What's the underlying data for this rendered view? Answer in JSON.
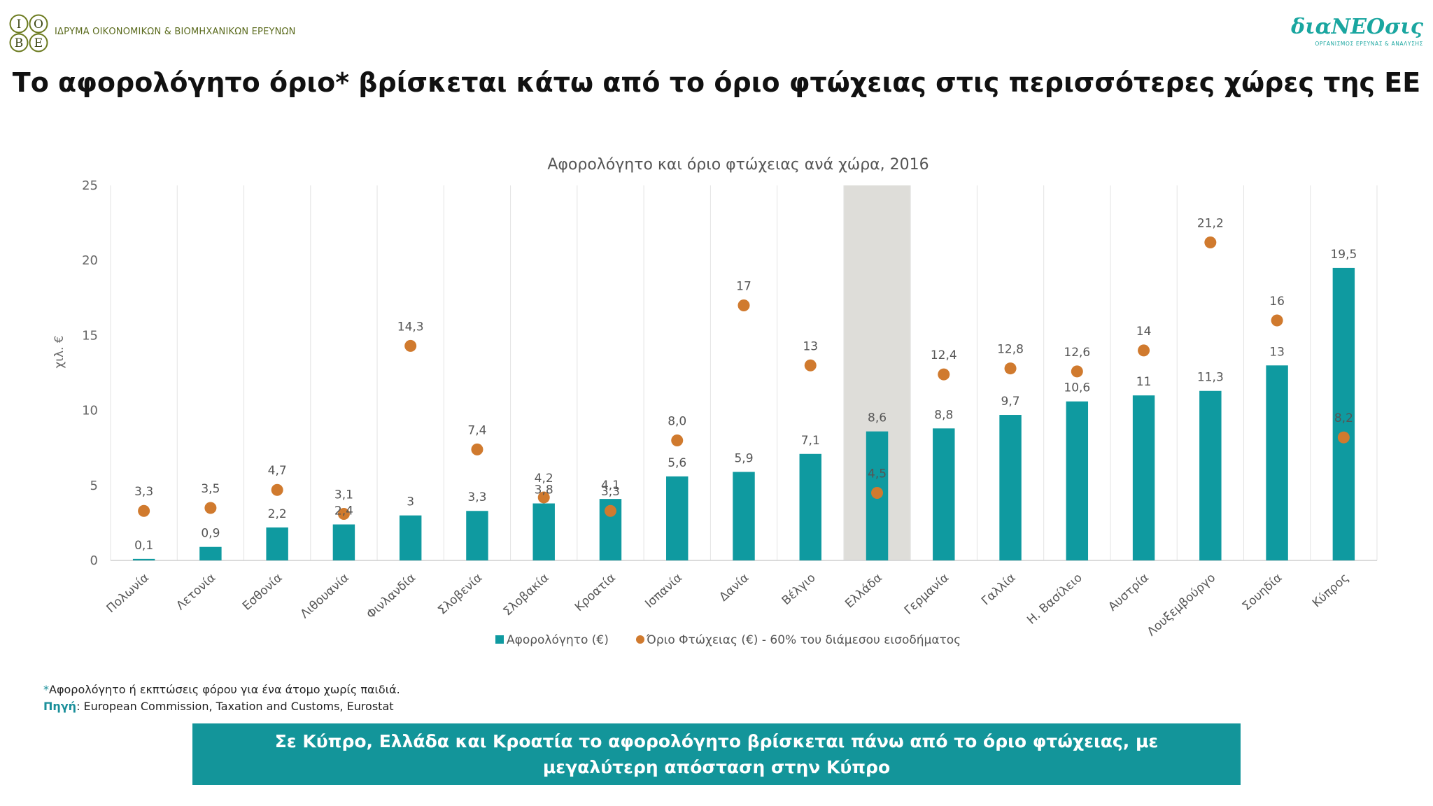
{
  "header": {
    "iobe_logo_letters": [
      "Ι",
      "Ο",
      "Β",
      "Ε"
    ],
    "iobe_name": "ΙΔΡΥΜΑ ΟΙΚΟΝΟΜΙΚΩΝ & ΒΙΟΜΗΧΑΝΙΚΩΝ ΕΡΕΥΝΩΝ",
    "dianeosis_brand": "διαΝΕΟσις",
    "dianeosis_tagline": "ΟΡΓΑΝΙΣΜΟΣ ΕΡΕΥΝΑΣ & ΑΝΑΛΥΣΗΣ"
  },
  "main_title": "Το αφορολόγητο όριο* βρίσκεται κάτω από το όριο φτώχειας στις περισσότερες χώρες της ΕΕ",
  "chart_data": {
    "type": "bar",
    "title": "Αφορολόγητο και όριο φτώχειας ανά χώρα, 2016",
    "ylabel": "χιλ. €",
    "xlabel": "",
    "ylim": [
      0,
      25
    ],
    "yticks": [
      0,
      5,
      10,
      15,
      20,
      25
    ],
    "grid": "vertical separators",
    "legend_position": "bottom",
    "highlight_category": "Ελλάδα",
    "categories": [
      "Πολωνία",
      "Λετονία",
      "Εσθονία",
      "Λιθουανία",
      "Φινλανδία",
      "Σλοβενία",
      "Σλοβακία",
      "Κροατία",
      "Ισπανία",
      "Δανία",
      "Βέλγιο",
      "Ελλάδα",
      "Γερμανία",
      "Γαλλία",
      "Η. Βασίλειο",
      "Αυστρία",
      "Λουξεμβούργο",
      "Σουηδία",
      "Κύπρος"
    ],
    "series": [
      {
        "name": "Αφορολόγητο (€)",
        "type": "bar",
        "color": "#0f9aa0",
        "values": [
          0.1,
          0.9,
          2.2,
          2.4,
          3,
          3.3,
          3.8,
          4.1,
          5.6,
          5.9,
          7.1,
          8.6,
          8.8,
          9.7,
          10.6,
          11,
          11.3,
          13,
          19.5
        ],
        "labels": [
          "0,1",
          "0,9",
          "2,2",
          "2,4",
          "3",
          "3,3",
          "3,8",
          "4,1",
          "5,6",
          "5,9",
          "7,1",
          "8,6",
          "8,8",
          "9,7",
          "10,6",
          "11",
          "11,3",
          "13",
          "19,5"
        ]
      },
      {
        "name": "Όριο Φτώχειας (€) - 60% του διάμεσου εισοδήματος",
        "type": "scatter",
        "color": "#d07a2e",
        "values": [
          3.3,
          3.5,
          4.7,
          3.1,
          14.3,
          7.4,
          4.2,
          3.3,
          8.0,
          17,
          13,
          4.5,
          12.4,
          12.8,
          12.6,
          14,
          21.2,
          16,
          8.2
        ],
        "labels": [
          "3,3",
          "3,5",
          "4,7",
          "3,1",
          "14,3",
          "7,4",
          "4,2",
          "3,3",
          "8,0",
          "17",
          "13",
          "4,5",
          "12,4",
          "12,8",
          "12,6",
          "14",
          "21,2",
          "16",
          "8,2"
        ]
      }
    ]
  },
  "footnote": {
    "star": "*",
    "text": "Αφορολόγητο ή εκπτώσεις φόρου για ένα άτομο χωρίς παιδιά.",
    "source_label": "Πηγή",
    "source_text": ": European Commission, Taxation and Customs, Eurostat"
  },
  "banner_text": "Σε Κύπρο, Ελλάδα και Κροατία το αφορολόγητο βρίσκεται πάνω από το όριο φτώχειας, με μεγαλύτερη απόσταση στην Κύπρο"
}
